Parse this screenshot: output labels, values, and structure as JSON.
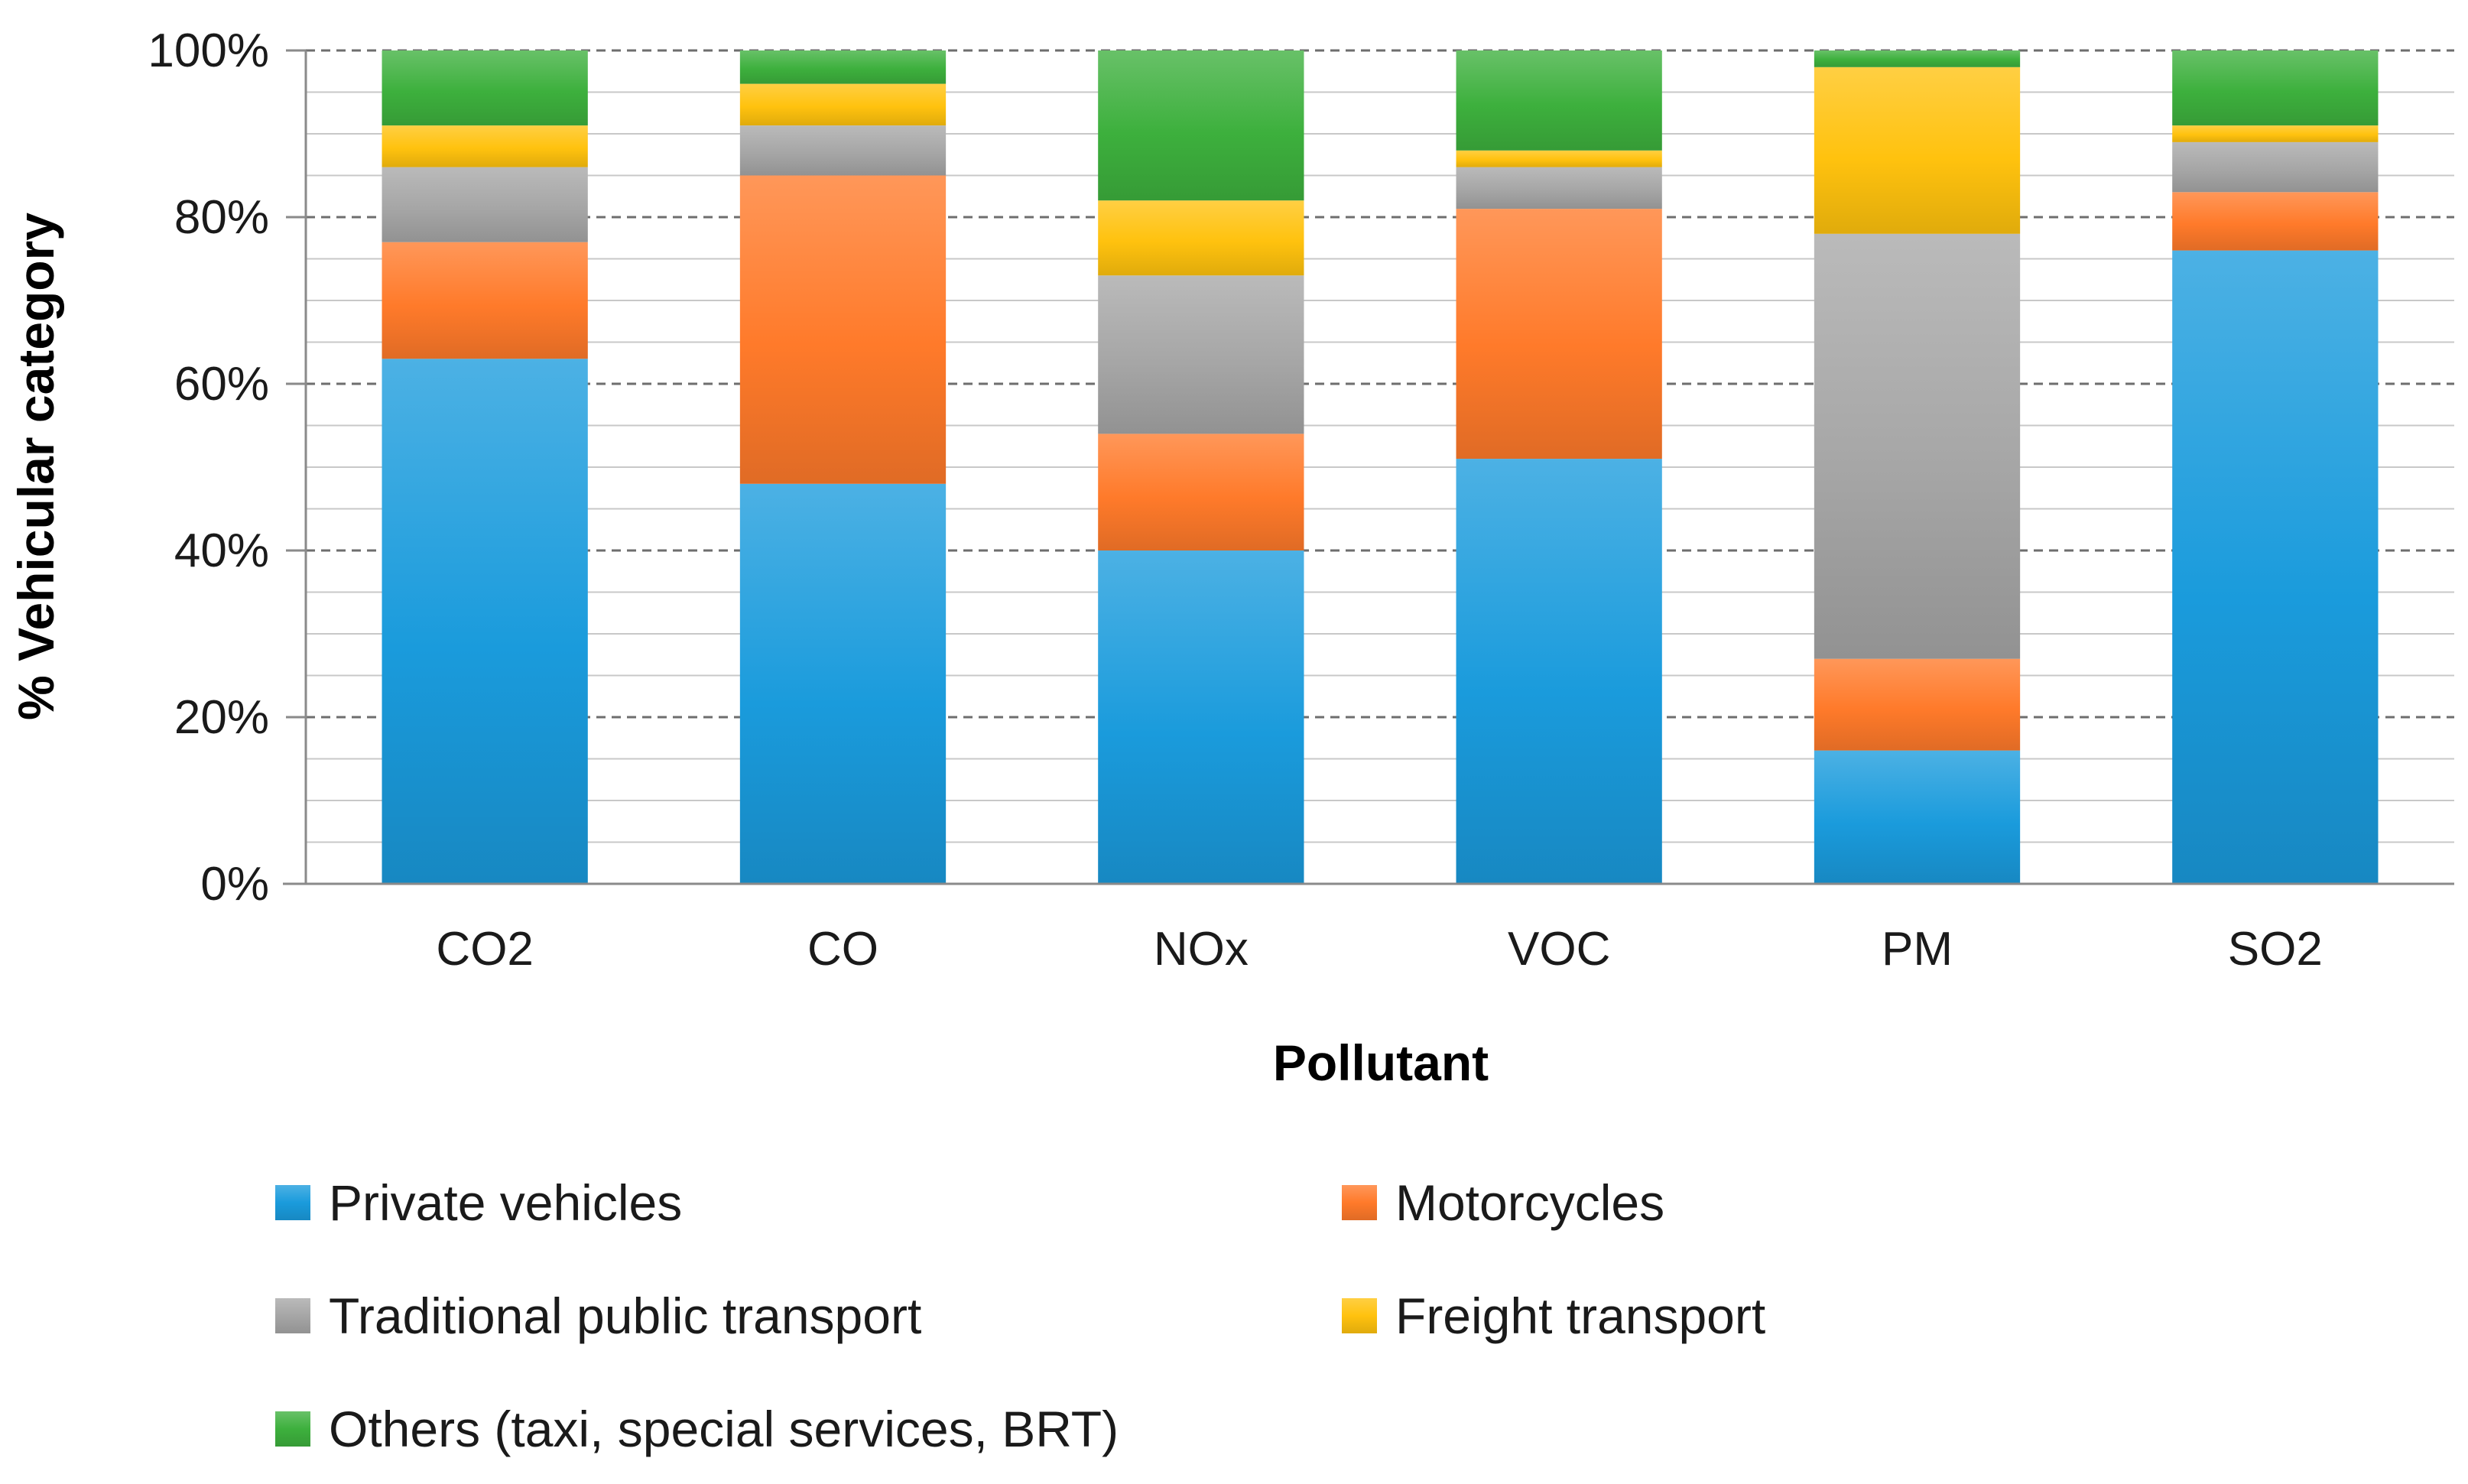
{
  "chart_data": {
    "type": "bar",
    "stacked": true,
    "title": "",
    "xlabel": "Pollutant",
    "ylabel": "% Vehicular category",
    "ylim": [
      0,
      100
    ],
    "yticks": [
      "0%",
      "20%",
      "40%",
      "60%",
      "80%",
      "100%"
    ],
    "categories": [
      "CO2",
      "CO",
      "NOx",
      "VOC",
      "PM",
      "SO2"
    ],
    "series": [
      {
        "name": "Private vehicles",
        "color": "#1a9bdc",
        "values": [
          63,
          48,
          40,
          51,
          16,
          76
        ]
      },
      {
        "name": "Motorcycles",
        "color": "#ff7a2a",
        "values": [
          14,
          37,
          14,
          30,
          11,
          7
        ]
      },
      {
        "name": "Traditional public transport",
        "color": "#a6a6a6",
        "values": [
          9,
          6,
          19,
          5,
          51,
          6
        ]
      },
      {
        "name": "Freight transport",
        "color": "#ffc20e",
        "values": [
          5,
          5,
          9,
          2,
          20,
          2
        ]
      },
      {
        "name": "Others (taxi, special services, BRT)",
        "color": "#3db03d",
        "values": [
          9,
          4,
          18,
          12,
          2,
          9
        ]
      }
    ],
    "legend_position": "bottom"
  }
}
